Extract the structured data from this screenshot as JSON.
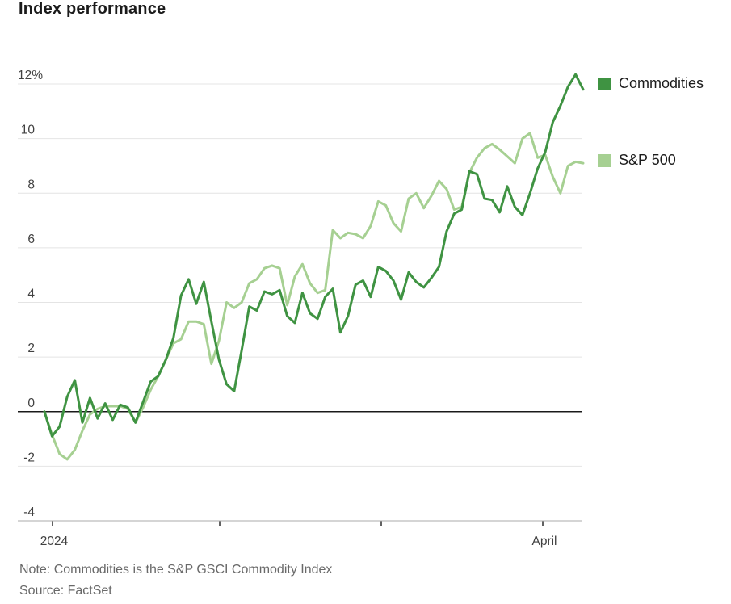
{
  "header": {
    "title": "Index performance"
  },
  "legend": [
    {
      "label": "Commodities",
      "color": "#3f9342"
    },
    {
      "label": "S&P 500",
      "color": "#a6d092"
    }
  ],
  "footer": {
    "note": "Note: Commodities is the S&P GSCI Commodity Index",
    "source": "Source: FactSet"
  },
  "chart_data": {
    "type": "line",
    "title": "Index performance",
    "unit": "percent",
    "grid": true,
    "legend_position": "right",
    "y_axis": {
      "range": [
        -4,
        12
      ],
      "ticks": [
        {
          "value": 12,
          "label": "12%"
        },
        {
          "value": 10,
          "label": "10"
        },
        {
          "value": 8,
          "label": "8"
        },
        {
          "value": 6,
          "label": "6"
        },
        {
          "value": 4,
          "label": "4"
        },
        {
          "value": 2,
          "label": "2"
        },
        {
          "value": 0,
          "label": "0"
        },
        {
          "value": -2,
          "label": "-2"
        },
        {
          "value": -4,
          "label": "-4"
        }
      ]
    },
    "x_axis": {
      "ticks": [
        {
          "label": "2024"
        },
        {
          "label": ""
        },
        {
          "label": ""
        },
        {
          "label": "April"
        }
      ]
    },
    "series": [
      {
        "name": "S&P 500",
        "color": "#a6d092",
        "values": [
          0.0,
          -0.85,
          -1.55,
          -1.75,
          -1.4,
          -0.7,
          -0.1,
          0.1,
          0.2,
          0.2,
          0.2,
          0.1,
          -0.4,
          0.15,
          0.8,
          1.3,
          1.9,
          2.5,
          2.65,
          3.3,
          3.3,
          3.2,
          1.75,
          2.6,
          4.0,
          3.8,
          4.0,
          4.7,
          4.85,
          5.25,
          5.35,
          5.25,
          3.9,
          4.95,
          5.4,
          4.7,
          4.35,
          4.45,
          6.65,
          6.35,
          6.55,
          6.5,
          6.35,
          6.8,
          7.7,
          7.55,
          6.9,
          6.6,
          7.8,
          8.0,
          7.45,
          7.9,
          8.45,
          8.15,
          7.4,
          7.5,
          8.75,
          9.3,
          9.65,
          9.8,
          9.6,
          9.35,
          9.1,
          10.0,
          10.2,
          9.3,
          9.4,
          8.6,
          8.0,
          9.0,
          9.15,
          9.1
        ]
      },
      {
        "name": "Commodities",
        "color": "#3f9342",
        "values": [
          0.0,
          -0.9,
          -0.55,
          0.55,
          1.15,
          -0.4,
          0.5,
          -0.25,
          0.3,
          -0.3,
          0.25,
          0.15,
          -0.4,
          0.35,
          1.1,
          1.3,
          1.9,
          2.7,
          4.25,
          4.85,
          3.95,
          4.75,
          3.3,
          1.9,
          1.0,
          0.75,
          2.25,
          3.85,
          3.7,
          4.4,
          4.3,
          4.45,
          3.5,
          3.25,
          4.35,
          3.6,
          3.4,
          4.2,
          4.5,
          2.9,
          3.5,
          4.65,
          4.8,
          4.2,
          5.3,
          5.15,
          4.8,
          4.1,
          5.1,
          4.75,
          4.55,
          4.9,
          5.3,
          6.6,
          7.25,
          7.4,
          8.8,
          8.7,
          7.8,
          7.75,
          7.3,
          8.25,
          7.5,
          7.2,
          8.0,
          8.9,
          9.5,
          10.6,
          11.2,
          11.9,
          12.35,
          11.8
        ]
      }
    ]
  }
}
